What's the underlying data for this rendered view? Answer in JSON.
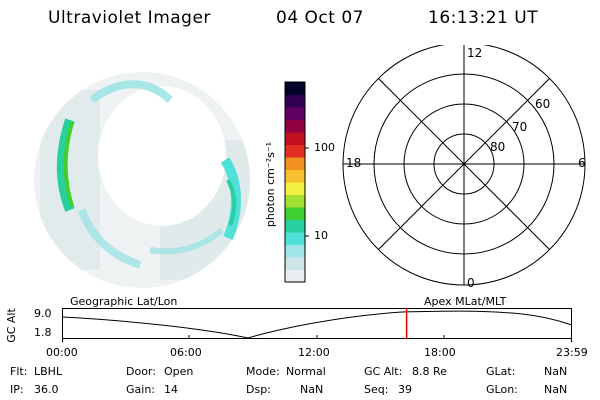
{
  "header": {
    "title": "Ultraviolet Imager",
    "date": "04 Oct 07",
    "time": "16:13:21 UT"
  },
  "colorbar": {
    "label": "photon cm⁻²s⁻¹",
    "ticks": [
      "100",
      "10"
    ],
    "colors": [
      "#e8eef0",
      "#cfe4e6",
      "#9fe4e6",
      "#4fe0d8",
      "#28d0a0",
      "#3fd030",
      "#9fe030",
      "#f0f040",
      "#f8c030",
      "#f09020",
      "#e03020",
      "#c01020",
      "#900040",
      "#600060",
      "#300050",
      "#000028"
    ]
  },
  "polar_plot": {
    "mlt_labels": [
      "12",
      "18",
      "6",
      "0"
    ],
    "lat_labels": [
      "60",
      "70",
      "80"
    ]
  },
  "timeline": {
    "axis_label": "GC Alt",
    "y_ticks": [
      "9.0",
      "1.8"
    ],
    "left_label": "Geographic Lat/Lon",
    "right_label": "Apex  MLat/MLT",
    "x_ticks": [
      "00:00",
      "06:00",
      "12:00",
      "18:00",
      "23:59"
    ],
    "marker_color": "#e00000",
    "current_time_fraction": 0.676
  },
  "info": {
    "row1": [
      {
        "key": "Flt:",
        "value": "LBHL"
      },
      {
        "key": "Door:",
        "value": "Open"
      },
      {
        "key": "Mode:",
        "value": "Normal"
      },
      {
        "key": "GC Alt:",
        "value": "8.8 Re"
      },
      {
        "key": "GLat:",
        "value": "NaN"
      }
    ],
    "row2": [
      {
        "key": "IP:",
        "value": "36.0"
      },
      {
        "key": "Gain:",
        "value": "14"
      },
      {
        "key": "Dsp:",
        "value": "NaN"
      },
      {
        "key": "Seq:",
        "value": "39"
      },
      {
        "key": "GLon:",
        "value": "NaN"
      }
    ]
  }
}
